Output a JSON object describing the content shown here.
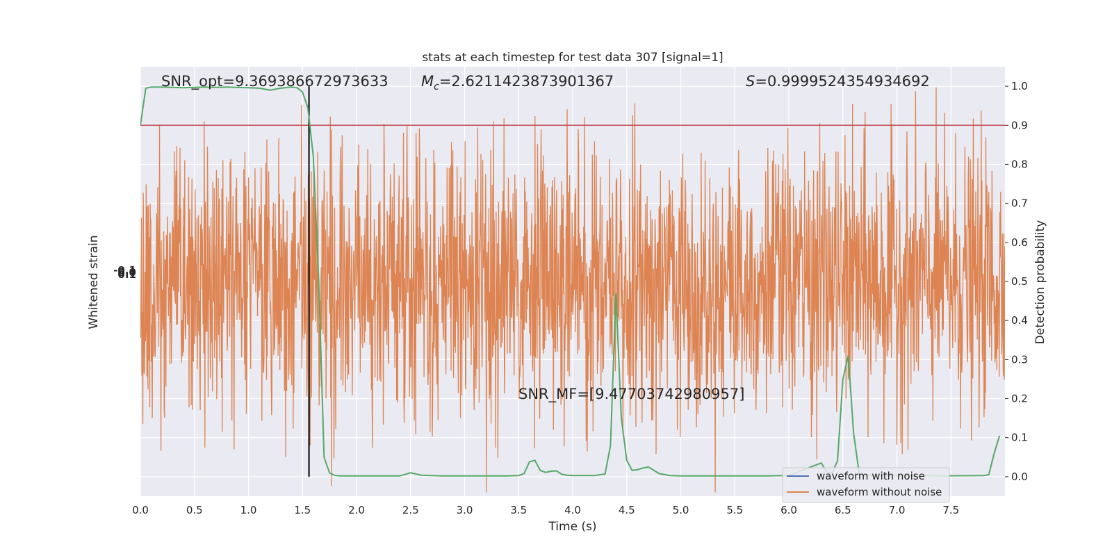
{
  "chart_data": {
    "type": "line",
    "title": "stats at each timestep for test data 307 [signal=1]",
    "xlabel": "Time (s)",
    "ylabel_left": "Whitened strain",
    "ylabel_right": "Detection probability",
    "xlim": [
      0.0,
      8.0
    ],
    "ylim_right": [
      -0.05,
      1.05
    ],
    "x_ticks": [
      "0.0",
      "0.5",
      "1.0",
      "1.5",
      "2.0",
      "2.5",
      "3.0",
      "3.5",
      "4.0",
      "4.5",
      "5.0",
      "5.5",
      "6.0",
      "6.5",
      "7.0",
      "7.5"
    ],
    "y_ticks_right": [
      "0.0",
      "0.1",
      "0.2",
      "0.3",
      "0.4",
      "0.5",
      "0.6",
      "0.7",
      "0.8",
      "0.9",
      "1.0"
    ],
    "left_tick_labels": [
      "-0.1",
      "0.0",
      "0.1"
    ],
    "grid": true,
    "legend_position": "lower right",
    "legend": [
      "waveform with noise",
      "waveform without noise"
    ],
    "annotations": {
      "snr_opt": "SNR_opt=9.369386672973633",
      "mc_prefix": "M",
      "mc_sub": "c",
      "mc_value": "=2.6211423873901367",
      "s_prefix": "S",
      "s_value": "=0.9999524354934692",
      "snr_mf": "SNR_MF=[9.47703742980957]"
    },
    "threshold": 0.9,
    "merger_time": 1.56,
    "series": [
      {
        "name": "waveform with noise",
        "color": "#4c72b0",
        "note": "noisy strain, hidden behind the noiseless trace"
      },
      {
        "name": "waveform without noise",
        "color": "#dd8452",
        "noise_level": 0.27,
        "center": 0.5
      },
      {
        "color": "#55a868",
        "x": [
          0.0,
          0.05,
          0.1,
          0.2,
          0.3,
          0.4,
          0.5,
          0.6,
          0.7,
          0.8,
          0.9,
          1.0,
          1.1,
          1.2,
          1.3,
          1.4,
          1.45,
          1.5,
          1.55,
          1.6,
          1.65,
          1.7,
          1.75,
          1.8,
          1.85,
          1.9,
          2.0,
          2.2,
          2.4,
          2.5,
          2.6,
          2.8,
          3.0,
          3.2,
          3.4,
          3.5,
          3.55,
          3.6,
          3.65,
          3.7,
          3.75,
          3.8,
          3.85,
          3.9,
          3.95,
          4.0,
          4.1,
          4.2,
          4.3,
          4.35,
          4.4,
          4.45,
          4.5,
          4.55,
          4.6,
          4.65,
          4.7,
          4.8,
          4.9,
          5.0,
          5.2,
          5.5,
          5.8,
          6.0,
          6.2,
          6.3,
          6.35,
          6.4,
          6.45,
          6.5,
          6.55,
          6.6,
          6.65,
          6.7,
          6.8,
          7.0,
          7.4,
          7.8,
          7.85,
          7.9,
          7.95
        ],
        "values": [
          0.9,
          0.995,
          0.998,
          0.998,
          0.997,
          0.996,
          0.997,
          0.998,
          0.997,
          0.998,
          0.997,
          0.996,
          0.995,
          0.99,
          0.995,
          0.998,
          0.996,
          0.985,
          0.945,
          0.82,
          0.5,
          0.05,
          0.01,
          0.003,
          0.002,
          0.002,
          0.002,
          0.002,
          0.002,
          0.01,
          0.004,
          0.002,
          0.002,
          0.002,
          0.002,
          0.003,
          0.008,
          0.038,
          0.042,
          0.016,
          0.011,
          0.014,
          0.015,
          0.006,
          0.004,
          0.003,
          0.003,
          0.003,
          0.007,
          0.08,
          0.47,
          0.15,
          0.042,
          0.016,
          0.018,
          0.022,
          0.025,
          0.008,
          0.003,
          0.002,
          0.002,
          0.002,
          0.002,
          0.003,
          0.025,
          0.035,
          0.012,
          0.01,
          0.04,
          0.25,
          0.31,
          0.11,
          0.01,
          0.005,
          0.003,
          0.003,
          0.002,
          0.003,
          0.005,
          0.06,
          0.105
        ]
      }
    ]
  }
}
